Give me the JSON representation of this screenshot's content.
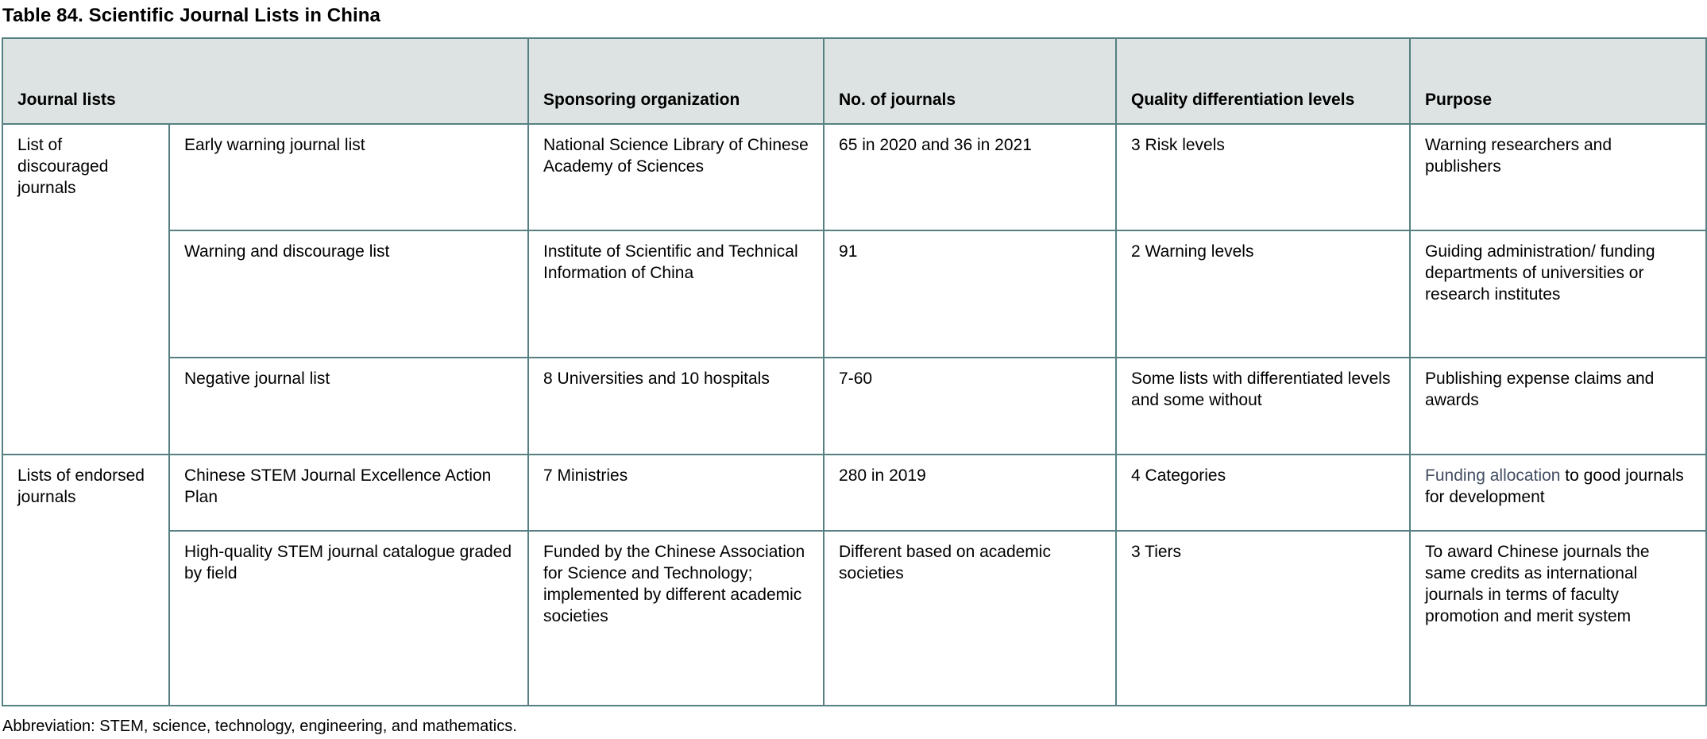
{
  "title": "Table 84. Scientific Journal Lists in China",
  "colors": {
    "border": "#568082",
    "header_bg": "#dce3e2",
    "link_text": "#434d61",
    "body_text": "#000000"
  },
  "table": {
    "headers": {
      "journal_lists": "Journal lists",
      "sponsoring_organization": "Sponsoring organization",
      "no_of_journals": "No. of journals",
      "quality_levels": "Quality differentiation levels",
      "purpose": "Purpose"
    },
    "groups": [
      {
        "label": "List of discouraged journals",
        "rows": [
          {
            "list": "Early warning journal list",
            "sponsor": "National Science Library of Chinese Academy of Sciences",
            "count": "65 in 2020 and 36 in 2021",
            "levels": "3 Risk levels",
            "purpose": "Warning researchers and publishers"
          },
          {
            "list": "Warning and discourage list",
            "sponsor": "Institute of Scientific and Technical Information of China",
            "count": "91",
            "levels": "2 Warning levels",
            "purpose": "Guiding administration/ funding departments of universities or research institutes"
          },
          {
            "list": "Negative journal list",
            "sponsor": "8 Universities and 10 hospitals",
            "count": "7-60",
            "levels": "Some lists with differentiated levels and some without",
            "purpose": "Publishing expense claims and awards"
          }
        ]
      },
      {
        "label": "Lists of endorsed journals",
        "rows": [
          {
            "list": "Chinese STEM Journal Excellence Action Plan",
            "sponsor": "7 Ministries",
            "count": "280 in 2019",
            "levels": "4 Categories",
            "purpose_link": "Funding allocation",
            "purpose_rest": " to good journals for development"
          },
          {
            "list": "High-quality STEM journal catalogue graded by field",
            "sponsor": "Funded by the Chinese Association for Science and Technology; implemented by different academic societies",
            "count": "Different based on academic societies",
            "levels": "3 Tiers",
            "purpose": "To award Chinese journals the same credits as international journals in terms of faculty promotion and merit system"
          }
        ]
      }
    ]
  },
  "footnote": "Abbreviation: STEM, science, technology, engineering, and mathematics."
}
